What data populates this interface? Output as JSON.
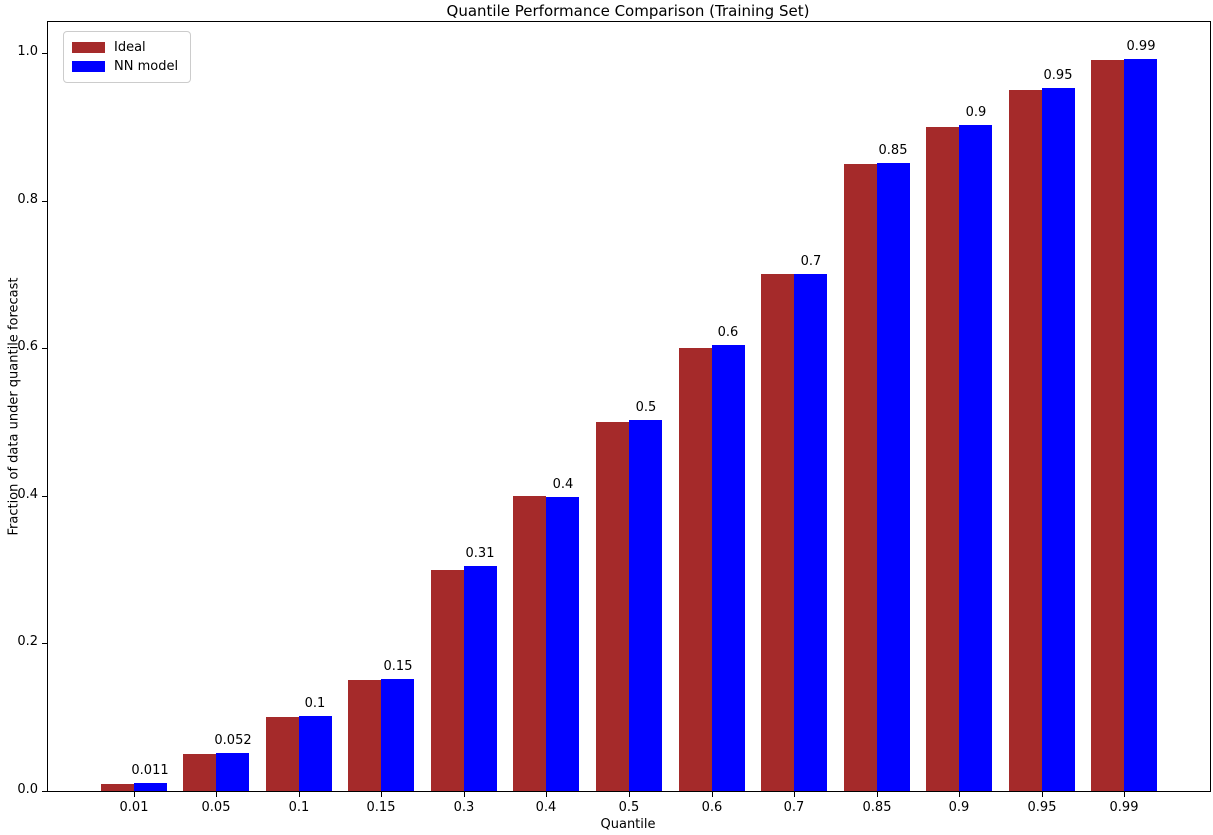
{
  "chart_data": {
    "type": "bar",
    "title": "Quantile Performance Comparison (Training Set)",
    "xlabel": "Quantile",
    "ylabel": "Fraction of data under quantile forecast",
    "categories": [
      "0.01",
      "0.05",
      "0.1",
      "0.15",
      "0.3",
      "0.4",
      "0.5",
      "0.6",
      "0.7",
      "0.85",
      "0.9",
      "0.95",
      "0.99"
    ],
    "series": [
      {
        "name": "Ideal",
        "color": "#a52a2a",
        "values": [
          0.01,
          0.05,
          0.1,
          0.15,
          0.3,
          0.4,
          0.5,
          0.6,
          0.7,
          0.85,
          0.9,
          0.95,
          0.99
        ]
      },
      {
        "name": "NN model",
        "color": "#0000ff",
        "values": [
          0.011,
          0.052,
          0.102,
          0.152,
          0.305,
          0.398,
          0.503,
          0.604,
          0.7,
          0.851,
          0.903,
          0.953,
          0.992
        ]
      }
    ],
    "bar_labels": [
      "0.011",
      "0.052",
      "0.1",
      "0.15",
      "0.31",
      "0.4",
      "0.5",
      "0.6",
      "0.7",
      "0.85",
      "0.9",
      "0.95",
      "0.99"
    ],
    "yticks": [
      "0.0",
      "0.2",
      "0.4",
      "0.6",
      "0.8",
      "1.0"
    ],
    "ytick_values": [
      0.0,
      0.2,
      0.4,
      0.6,
      0.8,
      1.0
    ],
    "ylim": [
      0,
      1.042
    ],
    "legend_position": "upper left",
    "grid": false,
    "annotation_color": "#000000",
    "axis_color": "#000000",
    "background_color": "#ffffff"
  }
}
